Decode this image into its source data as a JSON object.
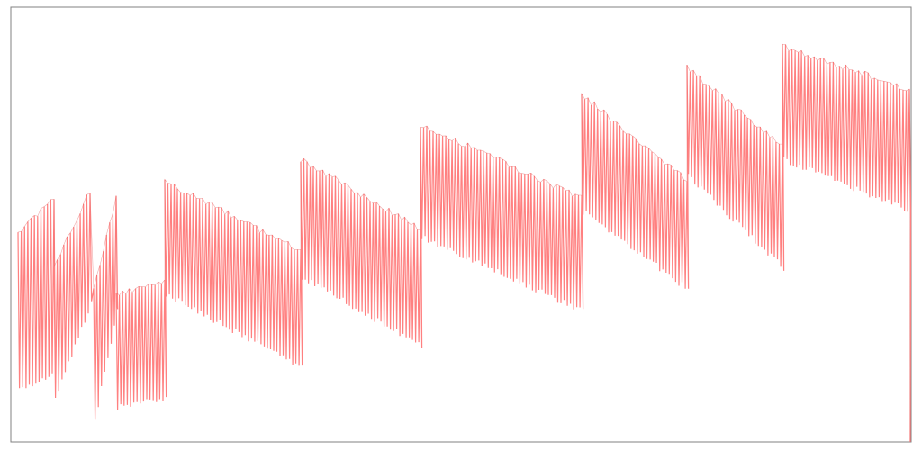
{
  "chart_data": {
    "type": "line",
    "title": "",
    "xlabel": "",
    "ylabel": "",
    "grid": false,
    "legend": "none",
    "xlim": [
      0,
      1
    ],
    "ylim": [
      0,
      1
    ],
    "series": [
      {
        "color": "#ff8080",
        "segments": [
          {
            "x0": 0.008,
            "x1": 0.048,
            "up0": 0.48,
            "up1": 0.56,
            "low0": 0.12,
            "low1": 0.16
          },
          {
            "x0": 0.048,
            "x1": 0.088,
            "up0": 0.4,
            "up1": 0.58,
            "low0": 0.1,
            "low1": 0.32
          },
          {
            "x0": 0.092,
            "x1": 0.117,
            "up0": 0.35,
            "up1": 0.56,
            "low0": 0.05,
            "low1": 0.3
          },
          {
            "x0": 0.117,
            "x1": 0.171,
            "up0": 0.34,
            "up1": 0.37,
            "low0": 0.08,
            "low1": 0.1
          },
          {
            "x0": 0.171,
            "x1": 0.322,
            "up0": 0.6,
            "up1": 0.44,
            "low0": 0.34,
            "low1": 0.17
          },
          {
            "x0": 0.322,
            "x1": 0.455,
            "up0": 0.65,
            "up1": 0.49,
            "low0": 0.38,
            "low1": 0.22
          },
          {
            "x0": 0.455,
            "x1": 0.634,
            "up0": 0.73,
            "up1": 0.56,
            "low0": 0.47,
            "low1": 0.3
          },
          {
            "x0": 0.634,
            "x1": 0.751,
            "up0": 0.8,
            "up1": 0.6,
            "low0": 0.53,
            "low1": 0.35
          },
          {
            "x0": 0.751,
            "x1": 0.857,
            "up0": 0.86,
            "up1": 0.68,
            "low0": 0.61,
            "low1": 0.4
          },
          {
            "x0": 0.857,
            "x1": 0.998,
            "up0": 0.91,
            "up1": 0.81,
            "low0": 0.65,
            "low1": 0.53
          }
        ]
      }
    ]
  }
}
